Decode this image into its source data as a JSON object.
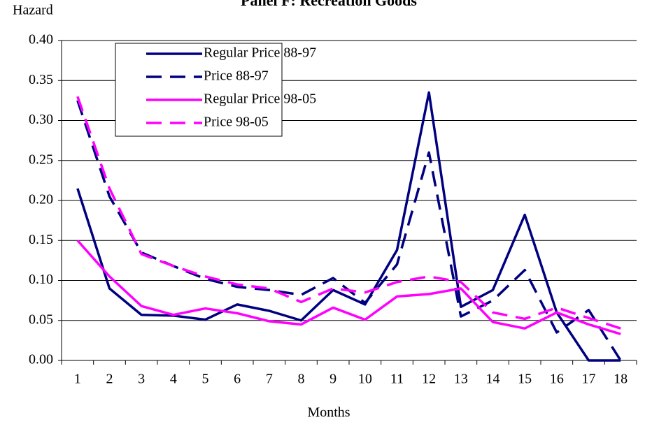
{
  "chart_data": {
    "type": "line",
    "title": "Panel F: Recreation Goods",
    "y_label": "Hazard",
    "x_label": "Months",
    "categories": [
      "1",
      "2",
      "3",
      "4",
      "5",
      "6",
      "7",
      "8",
      "9",
      "10",
      "11",
      "12",
      "13",
      "14",
      "15",
      "16",
      "17",
      "18"
    ],
    "series": [
      {
        "name": "Regular Price 88-97",
        "color": "#000080",
        "style": "solid",
        "values": [
          0.215,
          0.09,
          0.057,
          0.056,
          0.051,
          0.07,
          0.062,
          0.05,
          0.088,
          0.07,
          0.138,
          0.335,
          0.067,
          0.088,
          0.182,
          0.06,
          0.0,
          0.0
        ]
      },
      {
        "name": "Price 88-97",
        "color": "#000080",
        "style": "dashed",
        "values": [
          0.325,
          0.205,
          0.135,
          0.118,
          0.102,
          0.092,
          0.088,
          0.082,
          0.103,
          0.072,
          0.12,
          0.26,
          0.055,
          0.075,
          0.113,
          0.035,
          0.063,
          0.0
        ]
      },
      {
        "name": "Regular Price 98-05",
        "color": "#ff00ff",
        "style": "solid",
        "values": [
          0.15,
          0.105,
          0.068,
          0.057,
          0.065,
          0.059,
          0.049,
          0.045,
          0.066,
          0.051,
          0.08,
          0.083,
          0.09,
          0.048,
          0.04,
          0.06,
          0.045,
          0.033
        ]
      },
      {
        "name": "Price 98-05",
        "color": "#ff00ff",
        "style": "dashed",
        "values": [
          0.33,
          0.215,
          0.133,
          0.118,
          0.105,
          0.095,
          0.09,
          0.073,
          0.09,
          0.085,
          0.098,
          0.105,
          0.098,
          0.06,
          0.052,
          0.066,
          0.053,
          0.04
        ]
      }
    ],
    "ylim": [
      0,
      0.4
    ],
    "yticks": [
      {
        "value": 0,
        "label": "0.00"
      },
      {
        "value": 0.05,
        "label": "0.05"
      },
      {
        "value": 0.1,
        "label": "0.10"
      },
      {
        "value": 0.15,
        "label": "0.15"
      },
      {
        "value": 0.2,
        "label": "0.20"
      },
      {
        "value": 0.25,
        "label": "0.25"
      },
      {
        "value": 0.3,
        "label": "0.30"
      },
      {
        "value": 0.35,
        "label": "0.35"
      },
      {
        "value": 0.4,
        "label": "0.40"
      }
    ],
    "grid": true,
    "legend": "upper-left"
  }
}
